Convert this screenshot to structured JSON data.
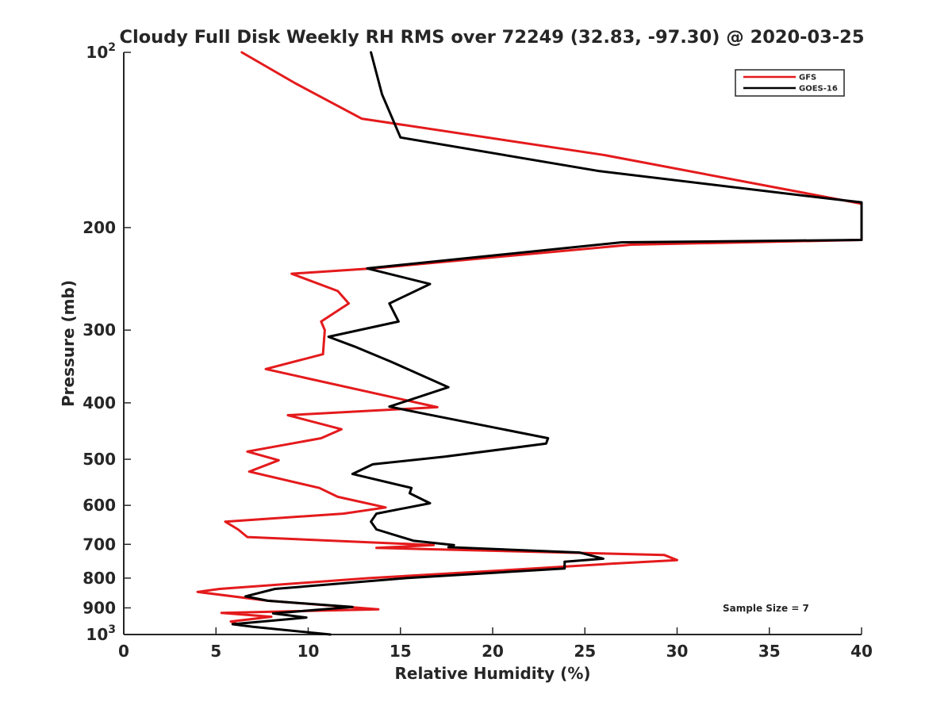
{
  "chart_data": {
    "type": "line",
    "title": "Cloudy Full Disk Weekly RH RMS over 72249 (32.83, -97.30) @ 2020-03-25",
    "xlabel": "Relative Humidity (%)",
    "ylabel": "Pressure (mb)",
    "xlim": [
      0,
      40
    ],
    "ylim": [
      100,
      1000
    ],
    "y_scale": "log",
    "y_reversed": true,
    "grid": false,
    "legend_position": "top-right",
    "annotation": "Sample Size = 7",
    "x_ticks": [
      0,
      5,
      10,
      15,
      20,
      25,
      30,
      35,
      40
    ],
    "x_tick_labels": [
      "0",
      "5",
      "10",
      "15",
      "20",
      "25",
      "30",
      "35",
      "40"
    ],
    "y_ticks": [
      100,
      200,
      300,
      400,
      500,
      600,
      700,
      800,
      900,
      1000
    ],
    "y_tick_labels": [
      {
        "base": "10",
        "exp": "2"
      },
      {
        "base": "200",
        "exp": ""
      },
      {
        "base": "300",
        "exp": ""
      },
      {
        "base": "400",
        "exp": ""
      },
      {
        "base": "500",
        "exp": ""
      },
      {
        "base": "600",
        "exp": ""
      },
      {
        "base": "700",
        "exp": ""
      },
      {
        "base": "800",
        "exp": ""
      },
      {
        "base": "900",
        "exp": ""
      },
      {
        "base": "10",
        "exp": "3"
      }
    ],
    "series": [
      {
        "name": "GFS",
        "color": "#e41a1c",
        "x": [
          6.4,
          9.3,
          12.9,
          26.0,
          38.4,
          40.0,
          40.0,
          27.5,
          13.5,
          9.1,
          11.6,
          12.2,
          10.7,
          10.9,
          10.8,
          7.7,
          17.0,
          8.9,
          11.8,
          10.7,
          6.7,
          8.4,
          6.8,
          10.6,
          11.6,
          14.2,
          11.9,
          5.5,
          6.2,
          6.7,
          16.8,
          13.7,
          29.3,
          30.0,
          26.4,
          19.9,
          13.3,
          5.2,
          4.0,
          7.8,
          13.8,
          5.3,
          8.0,
          5.8,
          6.4
        ],
        "y": [
          100,
          113,
          130,
          150,
          178,
          182,
          210,
          214,
          235,
          240,
          257,
          270,
          290,
          300,
          330,
          350,
          407,
          420,
          444,
          460,
          485,
          502,
          525,
          560,
          580,
          605,
          620,
          640,
          660,
          680,
          702,
          710,
          730,
          745,
          756,
          778,
          800,
          835,
          845,
          875,
          905,
          918,
          932,
          950,
          965
        ]
      },
      {
        "name": "GOES-16",
        "color": "#000000",
        "x": [
          13.4,
          14.0,
          15.0,
          25.8,
          38.0,
          40.0,
          40.0,
          27.0,
          13.2,
          16.6,
          14.4,
          14.9,
          11.1,
          12.5,
          14.5,
          17.6,
          14.4,
          16.2,
          23.0,
          22.9,
          17.4,
          13.5,
          12.4,
          15.6,
          15.5,
          16.6,
          13.7,
          13.4,
          13.7,
          15.7,
          17.9,
          17.6,
          24.7,
          26.0,
          23.9,
          23.9,
          15.3,
          8.2,
          6.6,
          7.8,
          12.4,
          8.1,
          9.9,
          5.9,
          7.0,
          11.2
        ],
        "y": [
          100,
          118,
          140,
          160,
          178,
          181,
          210,
          212,
          235,
          250,
          270,
          290,
          308,
          320,
          340,
          376,
          406,
          417,
          460,
          470,
          495,
          510,
          530,
          560,
          572,
          595,
          620,
          640,
          660,
          690,
          702,
          708,
          723,
          741,
          750,
          770,
          800,
          835,
          860,
          875,
          897,
          920,
          935,
          960,
          970,
          1000
        ]
      }
    ]
  }
}
